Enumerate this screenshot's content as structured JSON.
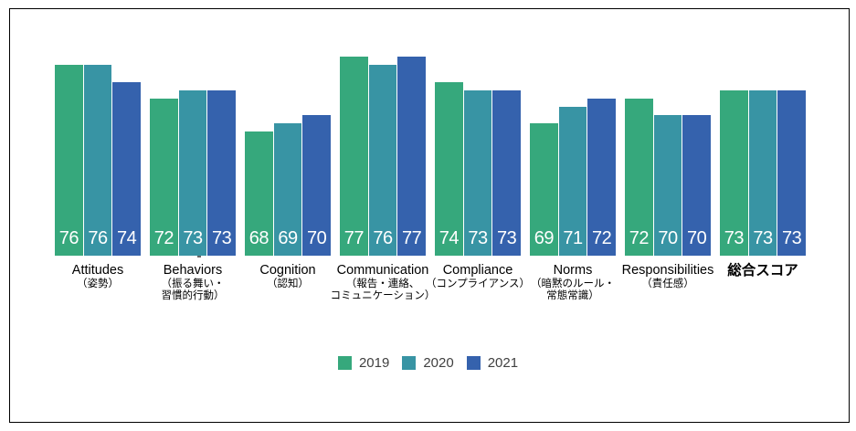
{
  "chart_data": {
    "type": "bar",
    "title": "",
    "grid": false,
    "legend_position": "bottom-center",
    "value_labels_shown": true,
    "axis_baseline_value": 53,
    "categories": [
      {
        "en": "Attitudes",
        "ja": [
          "（姿勢）"
        ],
        "bold": false
      },
      {
        "en": "Behaviors",
        "ja": [
          "（振る舞い・",
          "習慣的行動）"
        ],
        "bold": false
      },
      {
        "en": "Cognition",
        "ja": [
          "（認知）"
        ],
        "bold": false
      },
      {
        "en": "Communication",
        "ja": [
          "（報告・連絡、",
          "コミュニケーション）"
        ],
        "bold": false
      },
      {
        "en": "Compliance",
        "ja": [
          "（コンプライアンス）"
        ],
        "bold": false
      },
      {
        "en": "Norms",
        "ja": [
          "（暗黙のルール・",
          "常態常識）"
        ],
        "bold": false
      },
      {
        "en": "Responsibilities",
        "ja": [
          "（責任感）"
        ],
        "bold": false
      },
      {
        "en": "総合スコア",
        "ja": [],
        "bold": true
      }
    ],
    "series": [
      {
        "name": "2019",
        "color": "#36A87C",
        "values": [
          76,
          72,
          68,
          77,
          74,
          69,
          72,
          73
        ]
      },
      {
        "name": "2020",
        "color": "#3894A4",
        "values": [
          76,
          73,
          69,
          76,
          73,
          71,
          70,
          73
        ]
      },
      {
        "name": "2021",
        "color": "#3562AD",
        "values": [
          74,
          73,
          70,
          77,
          73,
          72,
          70,
          73
        ]
      }
    ]
  },
  "colors": {
    "bar_value_text": "#FFFFFF",
    "category_text": "#000000",
    "legend_text": "#404040",
    "frame_border": "#000000",
    "background": "#FFFFFF"
  }
}
